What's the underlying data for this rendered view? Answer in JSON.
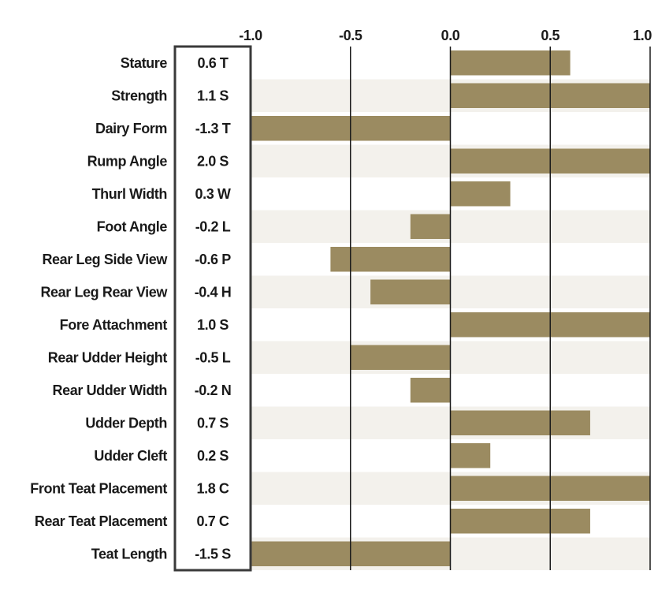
{
  "chart_data": {
    "type": "bar",
    "orientation": "horizontal",
    "title": "",
    "xlabel": "",
    "ylabel": "",
    "xlim": [
      -1.0,
      1.0
    ],
    "ticks": [
      -1.0,
      -0.5,
      0.0,
      0.5,
      1.0
    ],
    "tick_labels": [
      "-1.0",
      "-0.5",
      "0.0",
      "0.5",
      "1.0"
    ],
    "grid": true,
    "categories": [
      "Stature",
      "Strength",
      "Dairy Form",
      "Rump Angle",
      "Thurl Width",
      "Foot Angle",
      "Rear Leg Side View",
      "Rear Leg Rear View",
      "Fore Attachment",
      "Rear Udder Height",
      "Rear Udder Width",
      "Udder Depth",
      "Udder Cleft",
      "Front Teat Placement",
      "Rear Teat Placement",
      "Teat Length"
    ],
    "value_labels": [
      "0.6 T",
      "1.1 S",
      "-1.3 T",
      "2.0 S",
      "0.3 W",
      "-0.2 L",
      "-0.6 P",
      "-0.4 H",
      "1.0 S",
      "-0.5 L",
      "-0.2 N",
      "0.7 S",
      "0.2 S",
      "1.8 C",
      "0.7 C",
      "-1.5 S"
    ],
    "values": [
      0.6,
      1.1,
      -1.3,
      2.0,
      0.3,
      -0.2,
      -0.6,
      -0.4,
      1.0,
      -0.5,
      -0.2,
      0.7,
      0.2,
      1.8,
      0.7,
      -1.5
    ],
    "colors": {
      "bar": "#9b8b61",
      "band": "#f3f1ec",
      "frame": "#3a3a3a",
      "grid": "#1a1a1a"
    }
  }
}
